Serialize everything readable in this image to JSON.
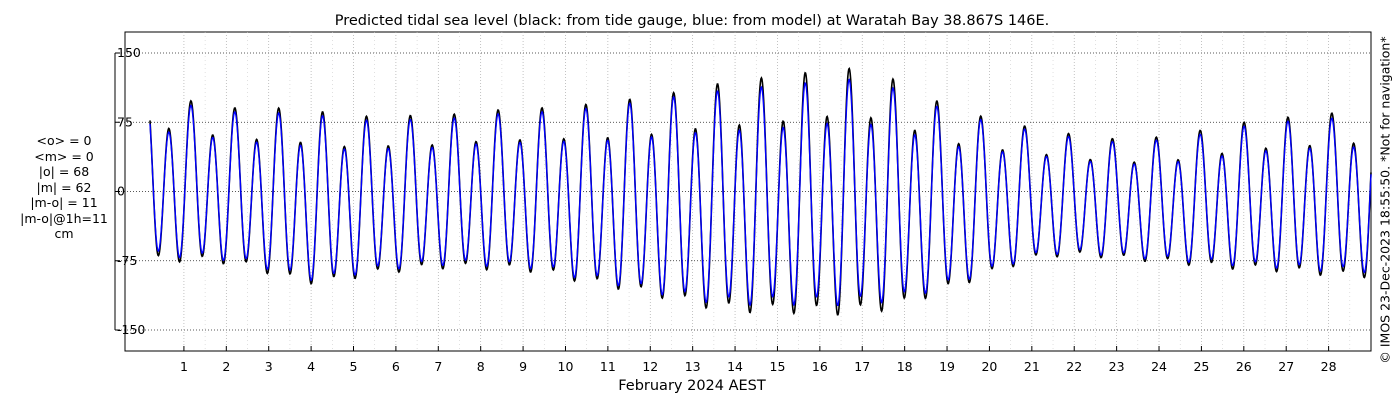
{
  "stats": {
    "lines": [
      "<o> = 0",
      "<m> = 0",
      "|o| = 68",
      "|m| = 62",
      "|m-o| = 11",
      "|m-o|@1h=11",
      "cm"
    ]
  },
  "credit": "© IMOS 23-Dec-2023 18:55:50. *Not for navigation*",
  "chart_data": {
    "type": "line",
    "title": "Predicted tidal sea level (black: from tide gauge, blue: from model) at Waratah Bay 38.867S 146E.",
    "xlabel": "February 2024 AEST",
    "ylabel": "",
    "xlim": [
      0.2,
      29.0
    ],
    "ylim": [
      -155,
      155
    ],
    "x_ticks": [
      1,
      2,
      3,
      4,
      5,
      6,
      7,
      8,
      9,
      10,
      11,
      12,
      13,
      14,
      15,
      16,
      17,
      18,
      19,
      20,
      21,
      22,
      23,
      24,
      25,
      26,
      27,
      28
    ],
    "x_tick_labels": [
      "1",
      "2",
      "3",
      "4",
      "5",
      "6",
      "7",
      "8",
      "9",
      "10",
      "11",
      "12",
      "13",
      "14",
      "15",
      "16",
      "17",
      "18",
      "19",
      "20",
      "21",
      "22",
      "23",
      "24",
      "25",
      "26",
      "27",
      "28"
    ],
    "y_ticks": [
      -150,
      -75,
      0,
      75,
      150
    ],
    "y_tick_labels": [
      "-150",
      "-75",
      "0",
      "75",
      "150"
    ],
    "grid": true,
    "series": [
      {
        "name": "from tide gauge",
        "color": "#000000",
        "x": [
          0.2,
          0.5,
          1.0,
          1.5,
          2.0,
          2.5,
          3.0,
          3.5,
          4.0,
          4.5,
          5.0,
          5.5,
          6.0,
          6.5,
          7.0,
          7.5,
          8.0,
          8.5,
          9.0,
          9.5,
          10.0,
          10.5,
          11.0,
          11.5,
          12.0,
          12.5,
          13.0,
          13.5,
          14.0,
          14.5,
          15.0,
          15.5,
          16.0,
          16.5,
          17.0,
          17.5,
          18.0,
          18.5,
          19.0,
          19.5,
          20.0,
          20.5,
          21.0,
          21.5,
          22.0,
          22.5,
          23.0,
          23.5,
          24.0,
          24.5,
          25.0,
          25.5,
          26.0,
          26.5,
          27.0,
          27.5,
          28.0,
          28.5,
          29.0
        ],
        "amplitude": [
          90,
          90,
          88,
          86,
          85,
          86,
          90,
          93,
          94,
          92,
          88,
          86,
          85,
          84,
          83,
          84,
          86,
          87,
          88,
          90,
          94,
          97,
          100,
          104,
          108,
          112,
          118,
          122,
          125,
          127,
          128,
          130,
          132,
          134,
          132,
          128,
          120,
          110,
          100,
          92,
          85,
          78,
          72,
          68,
          66,
          65,
          65,
          66,
          68,
          70,
          74,
          77,
          80,
          82,
          84,
          86,
          88,
          90,
          90
        ],
        "mean_level": [
          8,
          7,
          5,
          3,
          0,
          -3,
          -6,
          -10,
          -13,
          -14,
          -13,
          -11,
          -9,
          -8,
          -7,
          -6,
          -5,
          -5,
          -5,
          -6,
          -8,
          -10,
          -11,
          -12,
          -13,
          -14,
          -14,
          -15,
          -15,
          -14,
          -13,
          -12,
          -11,
          -10,
          -10,
          -11,
          -13,
          -14,
          -15,
          -14,
          -12,
          -10,
          -8,
          -8,
          -9,
          -11,
          -13,
          -14,
          -14,
          -14,
          -13,
          -12,
          -11,
          -10,
          -10,
          -10,
          -10,
          -10,
          -10
        ]
      },
      {
        "name": "from model",
        "color": "#0000ff",
        "x": [
          0.2,
          0.5,
          1.0,
          1.5,
          2.0,
          2.5,
          3.0,
          3.5,
          4.0,
          4.5,
          5.0,
          5.5,
          6.0,
          6.5,
          7.0,
          7.5,
          8.0,
          8.5,
          9.0,
          9.5,
          10.0,
          10.5,
          11.0,
          11.5,
          12.0,
          12.5,
          13.0,
          13.5,
          14.0,
          14.5,
          15.0,
          15.5,
          16.0,
          16.5,
          17.0,
          17.5,
          18.0,
          18.5,
          19.0,
          19.5,
          20.0,
          20.5,
          21.0,
          21.5,
          22.0,
          22.5,
          23.0,
          23.5,
          24.0,
          24.5,
          25.0,
          25.5,
          26.0,
          26.5,
          27.0,
          27.5,
          28.0,
          28.5,
          29.0
        ],
        "amplitude": [
          85,
          84,
          83,
          82,
          81,
          82,
          85,
          88,
          90,
          88,
          84,
          82,
          81,
          80,
          79,
          80,
          82,
          83,
          84,
          86,
          90,
          93,
          96,
          100,
          104,
          108,
          112,
          115,
          117,
          118,
          118,
          120,
          121,
          123,
          121,
          118,
          112,
          104,
          95,
          88,
          82,
          75,
          69,
          65,
          63,
          62,
          62,
          63,
          65,
          67,
          70,
          73,
          76,
          78,
          80,
          82,
          83,
          84,
          84
        ],
        "mean_level": [
          8,
          7,
          5,
          3,
          0,
          -3,
          -6,
          -10,
          -13,
          -14,
          -13,
          -11,
          -9,
          -8,
          -7,
          -6,
          -5,
          -5,
          -5,
          -6,
          -8,
          -10,
          -11,
          -12,
          -13,
          -14,
          -14,
          -15,
          -15,
          -14,
          -13,
          -12,
          -11,
          -10,
          -10,
          -11,
          -13,
          -14,
          -15,
          -14,
          -12,
          -10,
          -8,
          -8,
          -9,
          -11,
          -13,
          -14,
          -14,
          -14,
          -13,
          -12,
          -11,
          -10,
          -10,
          -10,
          -10,
          -10,
          -10
        ]
      }
    ],
    "period_days": 0.5175,
    "diurnal_inequality": 0.22
  }
}
